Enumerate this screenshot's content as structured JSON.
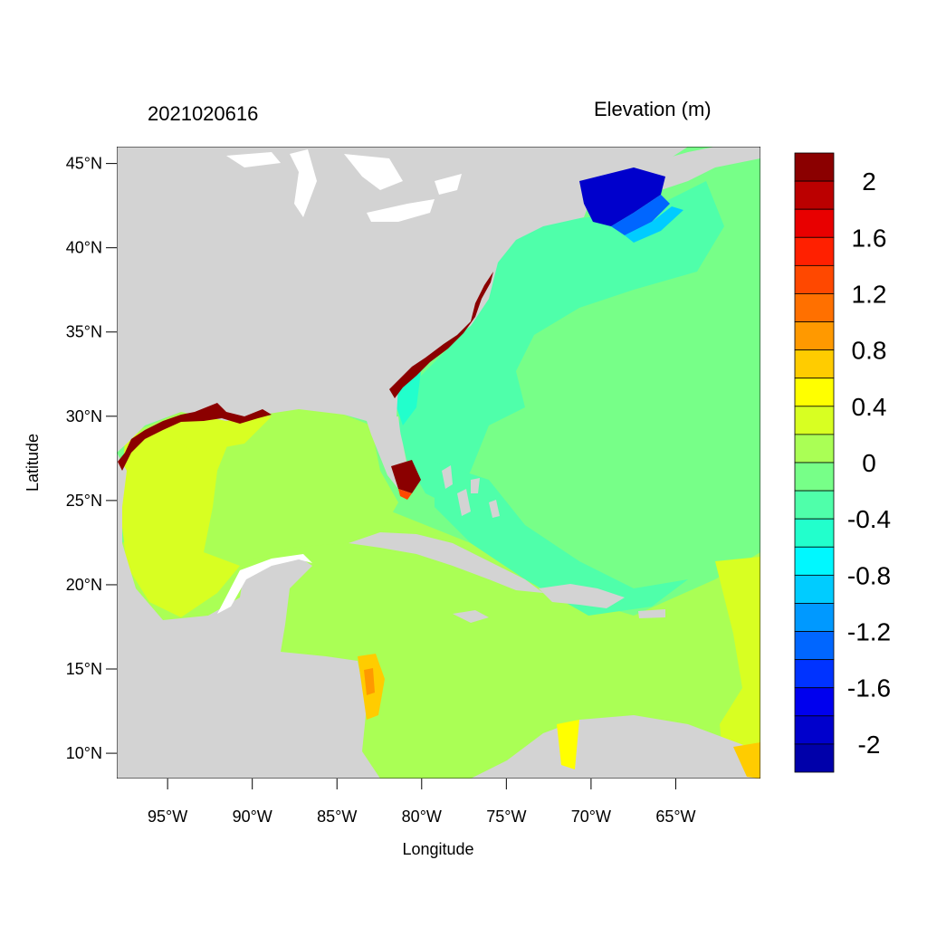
{
  "header": {
    "timestamp": "2021020616",
    "variable": "Elevation (m)"
  },
  "axes": {
    "xlabel": "Longitude",
    "ylabel": "Latitude",
    "x_ticks": [
      {
        "value": -95,
        "label": "95°W"
      },
      {
        "value": -90,
        "label": "90°W"
      },
      {
        "value": -85,
        "label": "85°W"
      },
      {
        "value": -80,
        "label": "80°W"
      },
      {
        "value": -75,
        "label": "75°W"
      },
      {
        "value": -70,
        "label": "70°W"
      },
      {
        "value": -65,
        "label": "65°W"
      }
    ],
    "y_ticks": [
      {
        "value": 45,
        "label": "45°N"
      },
      {
        "value": 40,
        "label": "40°N"
      },
      {
        "value": 35,
        "label": "35°N"
      },
      {
        "value": 30,
        "label": "30°N"
      },
      {
        "value": 25,
        "label": "25°N"
      },
      {
        "value": 20,
        "label": "20°N"
      },
      {
        "value": 15,
        "label": "15°N"
      },
      {
        "value": 10,
        "label": "10°N"
      }
    ],
    "xlim": [
      -98,
      -60
    ],
    "ylim": [
      8.5,
      46
    ]
  },
  "colorbar": {
    "colors": [
      "#8b0000",
      "#bb0000",
      "#e80000",
      "#ff2000",
      "#ff4800",
      "#ff7000",
      "#ff9900",
      "#ffcc00",
      "#ffff00",
      "#d8ff22",
      "#aaff55",
      "#77ff88",
      "#4fffaa",
      "#22ffcc",
      "#00f8ff",
      "#00ccff",
      "#0099ff",
      "#0066ff",
      "#0033ff",
      "#0000ee",
      "#0000cc",
      "#0000aa"
    ],
    "labels": [
      "2",
      "1.6",
      "1.2",
      "0.8",
      "0.4",
      "0",
      "-0.4",
      "-0.8",
      "-1.2",
      "-1.6",
      "-2"
    ]
  },
  "colors": {
    "land": "#d3d3d3",
    "gulf": "#d8ff22",
    "caribbean": "#aaff55",
    "atlantic": "#77ff88",
    "shelf": "#4fffaa",
    "negative_surge": "#0000cc",
    "positive_surge": "#8b0000"
  }
}
